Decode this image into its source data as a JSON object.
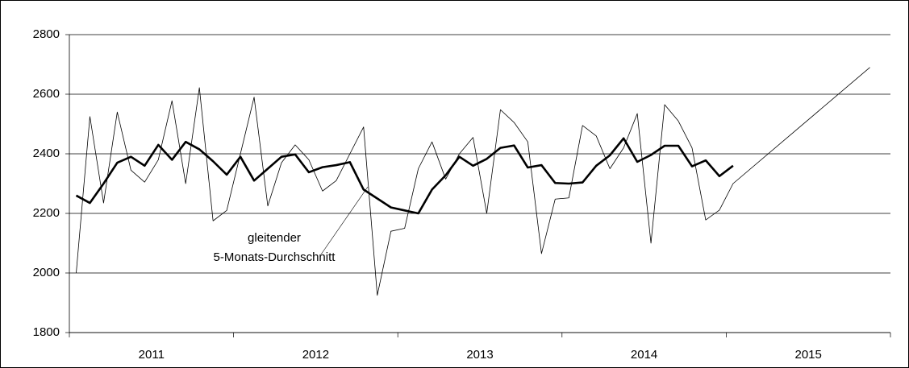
{
  "chart_data": {
    "type": "line",
    "xlim": [
      0,
      60
    ],
    "xticks": [
      0,
      12,
      24,
      36,
      48,
      60
    ],
    "x_labels": [
      {
        "value": 6,
        "label": "2011"
      },
      {
        "value": 18,
        "label": "2012"
      },
      {
        "value": 30,
        "label": "2013"
      },
      {
        "value": 42,
        "label": "2014"
      },
      {
        "value": 54,
        "label": "2015"
      }
    ],
    "ylim": [
      1800,
      2800
    ],
    "yticks": [
      1800,
      2000,
      2200,
      2400,
      2600,
      2800
    ],
    "grid": true,
    "series": [
      {
        "color": "#000000",
        "line_width": 0.8,
        "x": [
          0.5,
          1.5,
          2.5,
          3.5,
          4.5,
          5.5,
          6.5,
          7.5,
          8.5,
          9.5,
          10.5,
          11.5,
          12.5,
          13.5,
          14.5,
          15.5,
          16.5,
          17.5,
          18.5,
          19.5,
          20.5,
          21.5,
          22.5,
          23.5,
          24.5,
          25.5,
          26.5,
          27.5,
          28.5,
          29.5,
          30.5,
          31.5,
          32.5,
          33.5,
          34.5,
          35.5,
          36.5,
          37.5,
          38.5,
          39.5,
          40.5,
          41.5,
          42.5,
          43.5,
          44.5,
          45.5,
          46.5,
          47.5,
          48.5,
          58.5
        ],
        "values": [
          2000,
          2525,
          2235,
          2540,
          2345,
          2305,
          2380,
          2578,
          2300,
          2622,
          2175,
          2210,
          2400,
          2590,
          2225,
          2370,
          2430,
          2380,
          2275,
          2310,
          2400,
          2490,
          1925,
          2140,
          2150,
          2350,
          2440,
          2315,
          2400,
          2455,
          2200,
          2548,
          2505,
          2440,
          2065,
          2248,
          2252,
          2495,
          2460,
          2350,
          2420,
          2535,
          2100,
          2565,
          2510,
          2420,
          2178,
          2211,
          2300,
          2690
        ]
      },
      {
        "color": "#000000",
        "line_width": 2.6,
        "x": [
          0.5,
          1.5,
          2.5,
          3.5,
          4.5,
          5.5,
          6.5,
          7.5,
          8.5,
          9.5,
          10.5,
          11.5,
          12.5,
          13.5,
          14.5,
          15.5,
          16.5,
          17.5,
          18.5,
          19.5,
          20.5,
          21.5,
          22.5,
          23.5,
          24.5,
          25.5,
          26.5,
          27.5,
          28.5,
          29.5,
          30.5,
          31.5,
          32.5,
          33.5,
          34.5,
          35.5,
          36.5,
          37.5,
          38.5,
          39.5,
          40.5,
          41.5,
          42.5,
          43.5,
          44.5,
          45.5,
          46.5,
          47.5,
          48.5
        ],
        "values": [
          2260,
          2235,
          2300,
          2370,
          2390,
          2360,
          2430,
          2380,
          2440,
          2415,
          2375,
          2330,
          2390,
          2310,
          2350,
          2390,
          2398,
          2338,
          2355,
          2362,
          2372,
          2280,
          2250,
          2220,
          2210,
          2200,
          2280,
          2328,
          2390,
          2360,
          2383,
          2420,
          2428,
          2354,
          2362,
          2302,
          2300,
          2304,
          2360,
          2395,
          2452,
          2373,
          2396,
          2427,
          2427,
          2358,
          2378,
          2325,
          2360
        ]
      }
    ],
    "annotation": [
      "gleitender",
      "5-Monats-Durchschnitt"
    ]
  }
}
